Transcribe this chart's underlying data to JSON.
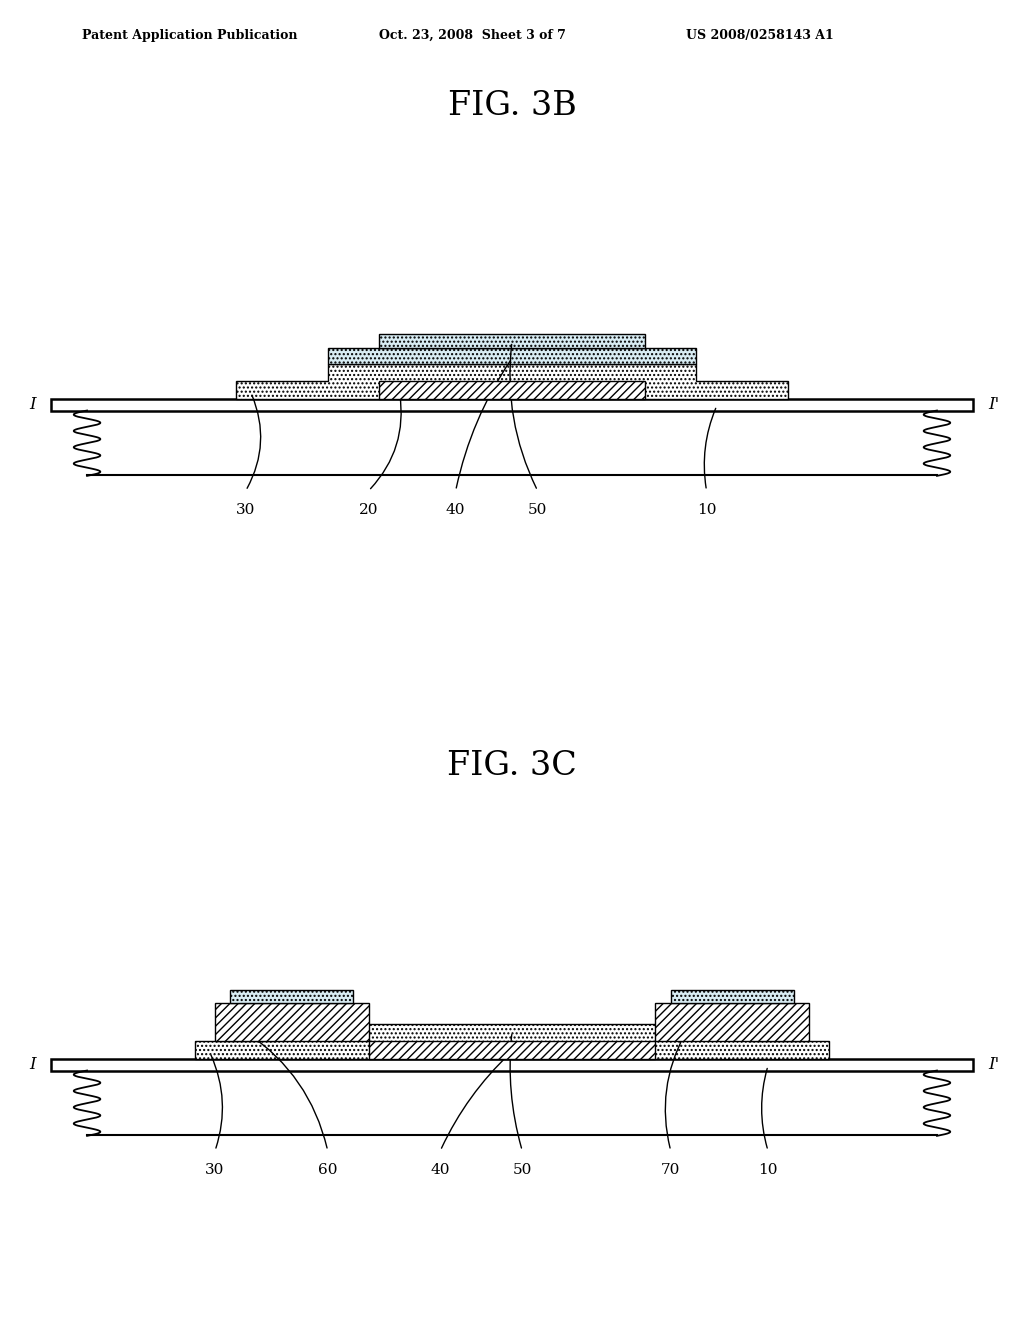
{
  "fig_title_1": "FIG. 3B",
  "fig_title_2": "FIG. 3C",
  "header_left": "Patent Application Publication",
  "header_center": "Oct. 23, 2008  Sheet 3 of 7",
  "header_right": "US 2008/0258143 A1",
  "background_color": "#ffffff",
  "line_color": "#000000",
  "labels_3b": [
    "30",
    "20",
    "40",
    "50",
    "10"
  ],
  "labels_3c": [
    "30",
    "60",
    "40",
    "50",
    "70",
    "10"
  ]
}
